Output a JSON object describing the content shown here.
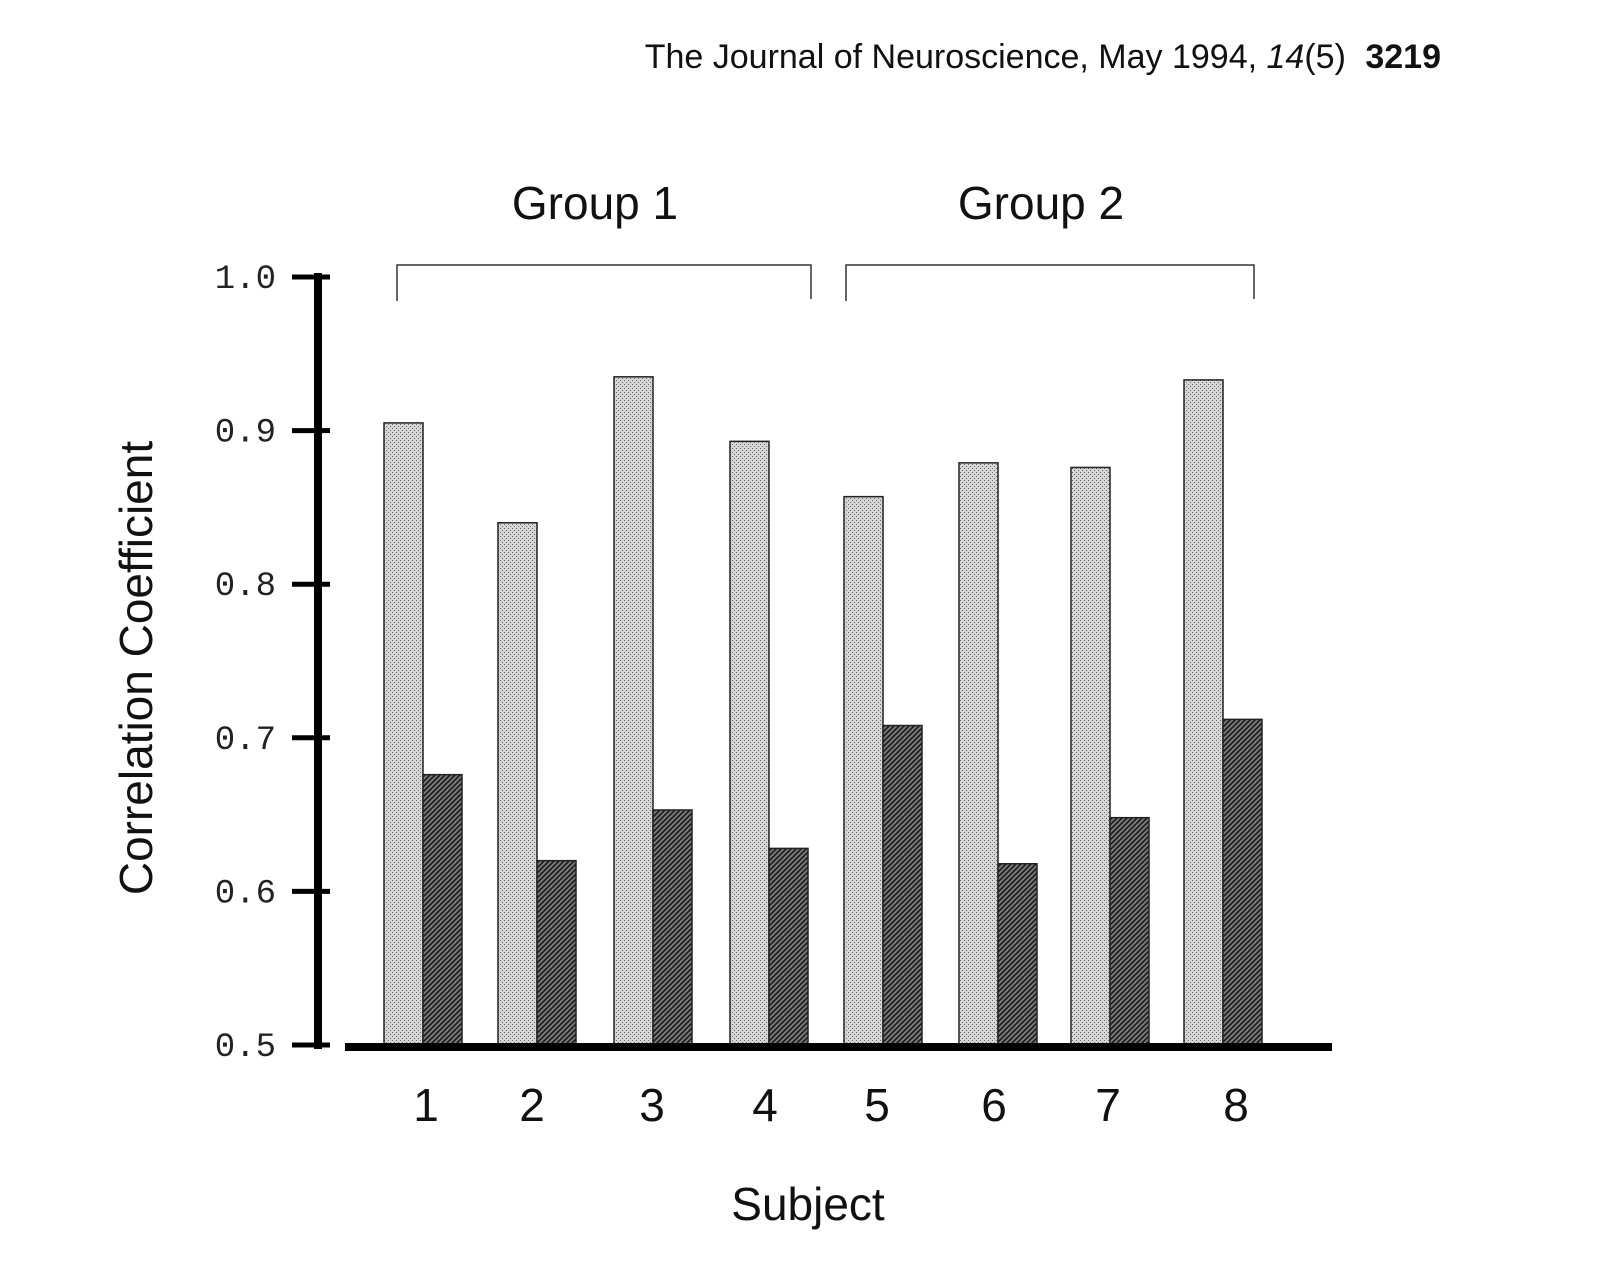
{
  "header": {
    "journal": "The Journal of Neuroscience, May 1994,",
    "volume": "14",
    "issue": "(5)",
    "page": "3219"
  },
  "chart_data": {
    "type": "bar",
    "title": "",
    "xlabel": "Subject",
    "ylabel": "Correlation Coefficient",
    "ylim": [
      0.5,
      1.0
    ],
    "yticks": [
      "1.0",
      "0.9",
      "0.8",
      "0.7",
      "0.6",
      "0.5"
    ],
    "categories": [
      "1",
      "2",
      "3",
      "4",
      "5",
      "6",
      "7",
      "8"
    ],
    "groups": [
      {
        "label": "Group 1",
        "categories": [
          "1",
          "2",
          "3",
          "4"
        ]
      },
      {
        "label": "Group 2",
        "categories": [
          "5",
          "6",
          "7",
          "8"
        ]
      }
    ],
    "series": [
      {
        "values": [
          0.905,
          0.84,
          0.935,
          0.893,
          0.857,
          0.879,
          0.876,
          0.933
        ]
      },
      {
        "values": [
          0.676,
          0.62,
          0.653,
          0.628,
          0.708,
          0.618,
          0.648,
          0.712
        ]
      }
    ],
    "series_colors": [
      "#bdbdbd",
      "#555555"
    ],
    "grid": false,
    "legend": "none"
  }
}
